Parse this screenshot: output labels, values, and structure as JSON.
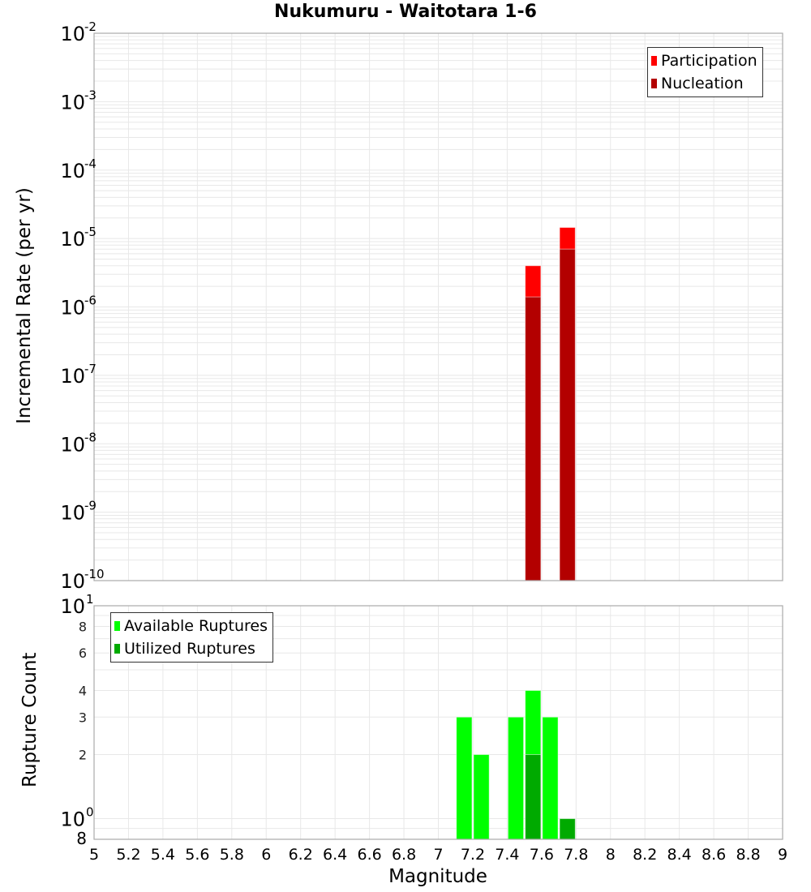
{
  "title": "Nukumuru - Waitotara 1-6",
  "colors": {
    "participation": "#ff0000",
    "nucleation": "#b30000",
    "available": "#00ff00",
    "utilized": "#00aa00",
    "grid": "#e8e8e8",
    "axis": "#aaaaaa"
  },
  "top_chart": {
    "ylabel": "Incremental Rate (per yr)",
    "legend": [
      "Participation",
      "Nucleation"
    ]
  },
  "bottom_chart": {
    "ylabel": "Rupture Count",
    "legend": [
      "Available Ruptures",
      "Utilized Ruptures"
    ]
  },
  "xlabel": "Magnitude",
  "chart_data": [
    {
      "type": "bar",
      "title": "Nukumuru - Waitotara 1-6",
      "xlabel": "Magnitude",
      "ylabel": "Incremental Rate (per yr)",
      "yscale": "log",
      "ylim": [
        1e-10,
        0.01
      ],
      "xlim": [
        5,
        9
      ],
      "x_ticks": [
        "5",
        "5.2",
        "5.4",
        "5.6",
        "5.8",
        "6",
        "6.2",
        "6.4",
        "6.6",
        "6.8",
        "7",
        "7.2",
        "7.4",
        "7.6",
        "7.8",
        "8",
        "8.2",
        "8.4",
        "8.6",
        "8.8",
        "9"
      ],
      "y_ticks": [
        "10^-2",
        "10^-3",
        "10^-4",
        "10^-5",
        "10^-6",
        "10^-7",
        "10^-8",
        "10^-9",
        "10^-10"
      ],
      "grid": true,
      "legend_position": "top-right",
      "bin_width": 0.1,
      "x": [
        7.55,
        7.75
      ],
      "series": [
        {
          "name": "Participation",
          "color": "#ff0000",
          "values": [
            4e-06,
            1.45e-05
          ]
        },
        {
          "name": "Nucleation",
          "color": "#b30000",
          "values": [
            1.4e-06,
            7e-06
          ]
        }
      ]
    },
    {
      "type": "bar",
      "xlabel": "Magnitude",
      "ylabel": "Rupture Count",
      "yscale": "log",
      "ylim": [
        0.8,
        10
      ],
      "xlim": [
        5,
        9
      ],
      "x_ticks": [
        "5",
        "5.2",
        "5.4",
        "5.6",
        "5.8",
        "6",
        "6.2",
        "6.4",
        "6.6",
        "6.8",
        "7",
        "7.2",
        "7.4",
        "7.6",
        "7.8",
        "8",
        "8.2",
        "8.4",
        "8.6",
        "8.8",
        "9"
      ],
      "y_ticks": [
        "10^1",
        "8",
        "6",
        "4",
        "3",
        "2",
        "10^0",
        "8"
      ],
      "grid": true,
      "legend_position": "top-left",
      "bin_width": 0.1,
      "x": [
        7.15,
        7.25,
        7.45,
        7.55,
        7.65,
        7.75
      ],
      "series": [
        {
          "name": "Available Ruptures",
          "color": "#00ff00",
          "values": [
            3,
            2,
            3,
            4,
            3,
            1
          ]
        },
        {
          "name": "Utilized Ruptures",
          "color": "#00aa00",
          "values": [
            0,
            0,
            0,
            2,
            0,
            1
          ]
        }
      ]
    }
  ]
}
